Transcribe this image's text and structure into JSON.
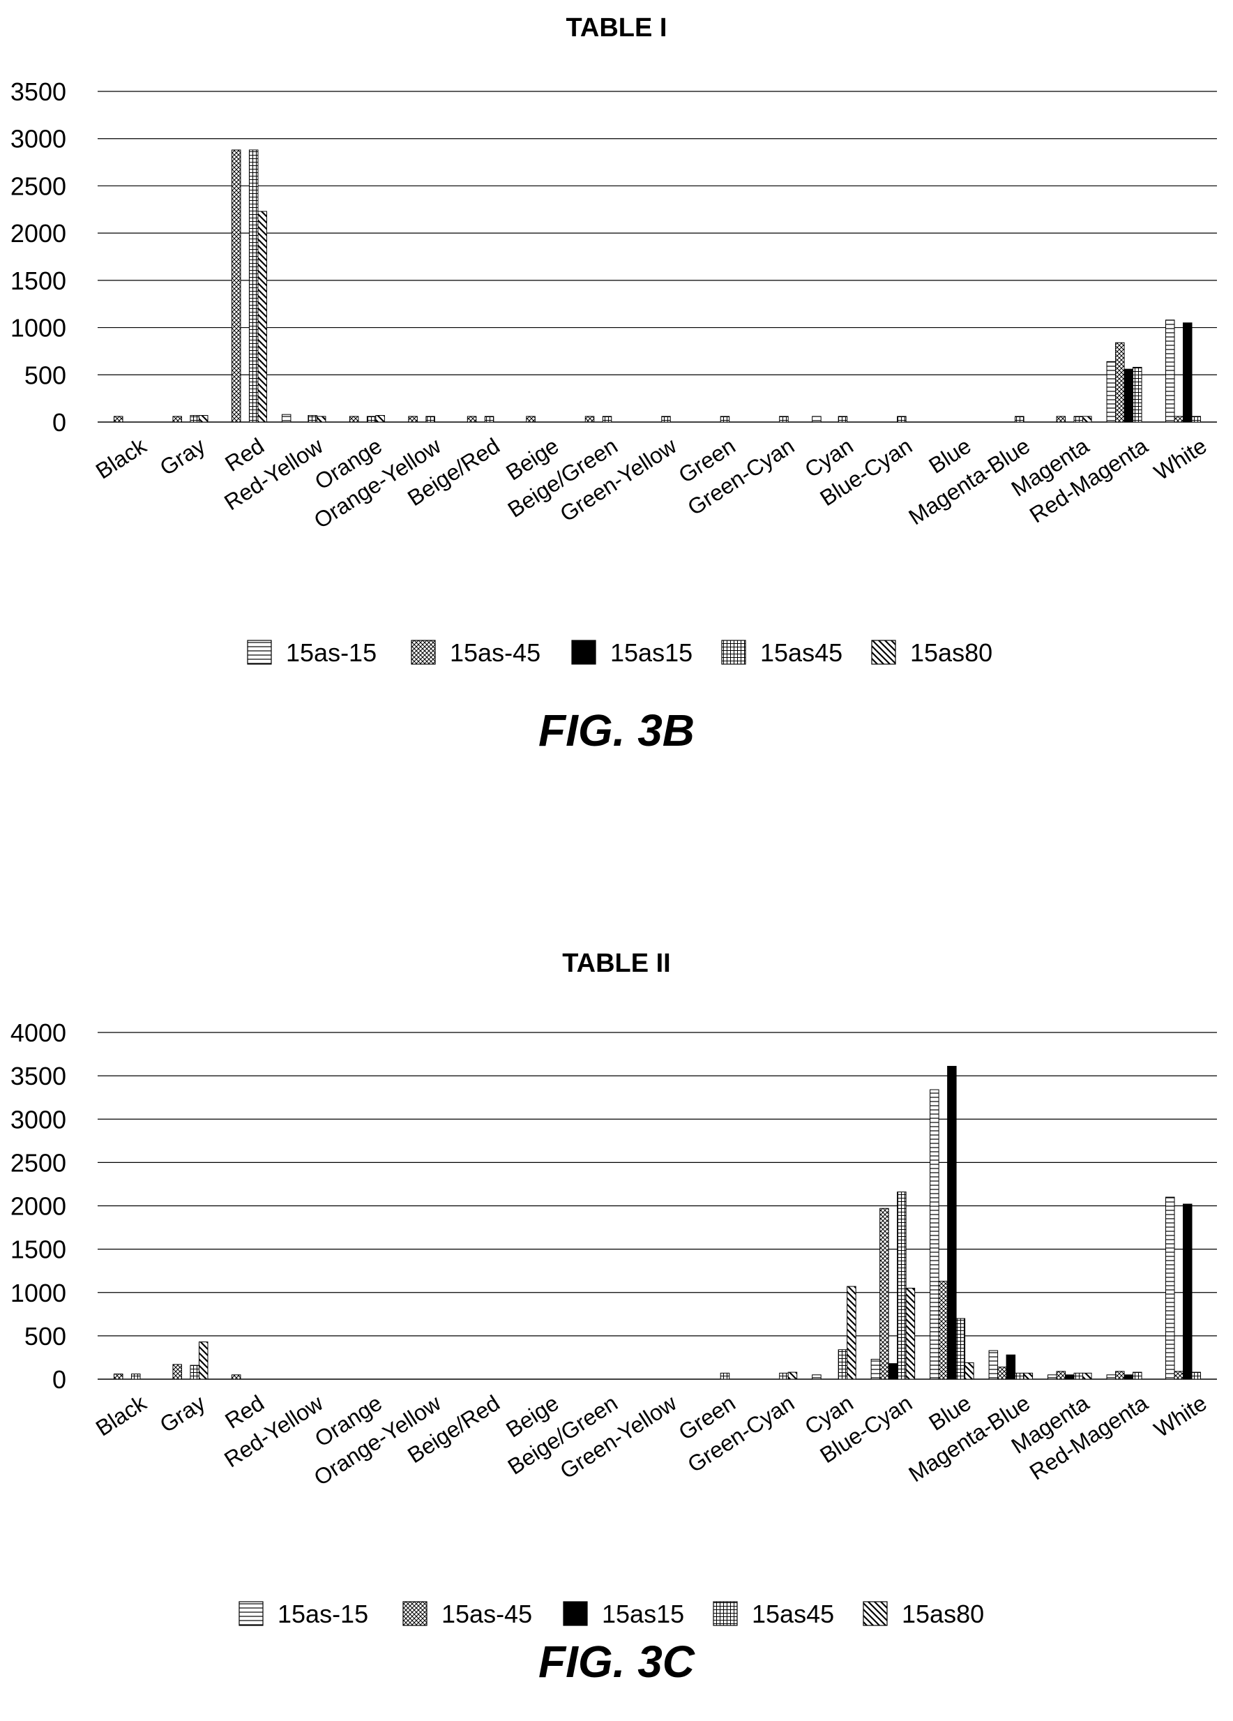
{
  "series_styles": [
    {
      "name": "15as-15",
      "pattern": "hlines"
    },
    {
      "name": "15as-45",
      "pattern": "crosshatch"
    },
    {
      "name": "15as15",
      "pattern": "solid"
    },
    {
      "name": "15as45",
      "pattern": "grid"
    },
    {
      "name": "15as80",
      "pattern": "diagonal"
    }
  ],
  "figures": [
    {
      "caption": "FIG. 3B"
    },
    {
      "caption": "FIG. 3C"
    }
  ],
  "chart_data": [
    {
      "type": "bar",
      "title": "TABLE I",
      "ylim": [
        0,
        3500
      ],
      "yticks": [
        0,
        500,
        1000,
        1500,
        2000,
        2500,
        3000,
        3500
      ],
      "grid": true,
      "legend_position": "bottom",
      "categories": [
        "Black",
        "Gray",
        "Red",
        "Red-Yellow",
        "Orange",
        "Orange-Yellow",
        "Beige/Red",
        "Beige",
        "Beige/Green",
        "Green-Yellow",
        "Green",
        "Green-Cyan",
        "Cyan",
        "Blue-Cyan",
        "Blue",
        "Magenta-Blue",
        "Magenta",
        "Red-Magenta",
        "White"
      ],
      "series": [
        {
          "name": "15as-15",
          "values": [
            0,
            0,
            0,
            80,
            0,
            0,
            0,
            0,
            0,
            0,
            0,
            0,
            60,
            0,
            0,
            0,
            0,
            640,
            1080
          ]
        },
        {
          "name": "15as-45",
          "values": [
            60,
            60,
            2880,
            0,
            60,
            60,
            60,
            60,
            60,
            0,
            0,
            0,
            0,
            0,
            0,
            0,
            60,
            840,
            60
          ]
        },
        {
          "name": "15as15",
          "values": [
            0,
            0,
            0,
            0,
            0,
            0,
            0,
            0,
            0,
            0,
            0,
            0,
            0,
            0,
            0,
            0,
            0,
            560,
            1050
          ]
        },
        {
          "name": "15as45",
          "values": [
            0,
            70,
            2880,
            70,
            60,
            60,
            60,
            0,
            60,
            60,
            60,
            60,
            60,
            60,
            0,
            60,
            60,
            580,
            60
          ]
        },
        {
          "name": "15as80",
          "values": [
            0,
            70,
            2230,
            60,
            70,
            0,
            0,
            0,
            0,
            0,
            0,
            0,
            0,
            0,
            0,
            0,
            60,
            0,
            0
          ]
        }
      ]
    },
    {
      "type": "bar",
      "title": "TABLE II",
      "ylim": [
        0,
        4000
      ],
      "yticks": [
        0,
        500,
        1000,
        1500,
        2000,
        2500,
        3000,
        3500,
        4000
      ],
      "grid": true,
      "legend_position": "bottom",
      "categories": [
        "Black",
        "Gray",
        "Red",
        "Red-Yellow",
        "Orange",
        "Orange-Yellow",
        "Beige/Red",
        "Beige",
        "Beige/Green",
        "Green-Yellow",
        "Green",
        "Green-Cyan",
        "Cyan",
        "Blue-Cyan",
        "Blue",
        "Magenta-Blue",
        "Magenta",
        "Red-Magenta",
        "White"
      ],
      "series": [
        {
          "name": "15as-15",
          "values": [
            0,
            0,
            0,
            0,
            0,
            0,
            0,
            0,
            0,
            0,
            0,
            0,
            50,
            230,
            3340,
            330,
            50,
            50,
            2100
          ]
        },
        {
          "name": "15as-45",
          "values": [
            60,
            170,
            50,
            0,
            0,
            0,
            0,
            0,
            0,
            0,
            0,
            0,
            0,
            1970,
            1130,
            140,
            90,
            90,
            90
          ]
        },
        {
          "name": "15as15",
          "values": [
            0,
            0,
            0,
            0,
            0,
            0,
            0,
            0,
            0,
            0,
            0,
            0,
            0,
            180,
            3610,
            280,
            50,
            50,
            2020
          ]
        },
        {
          "name": "15as45",
          "values": [
            60,
            160,
            0,
            0,
            0,
            0,
            0,
            0,
            0,
            0,
            70,
            70,
            340,
            2160,
            700,
            70,
            70,
            80,
            80
          ]
        },
        {
          "name": "15as80",
          "values": [
            0,
            430,
            0,
            0,
            0,
            0,
            0,
            0,
            0,
            0,
            0,
            80,
            1070,
            1050,
            190,
            70,
            70,
            0,
            0
          ]
        }
      ]
    }
  ]
}
